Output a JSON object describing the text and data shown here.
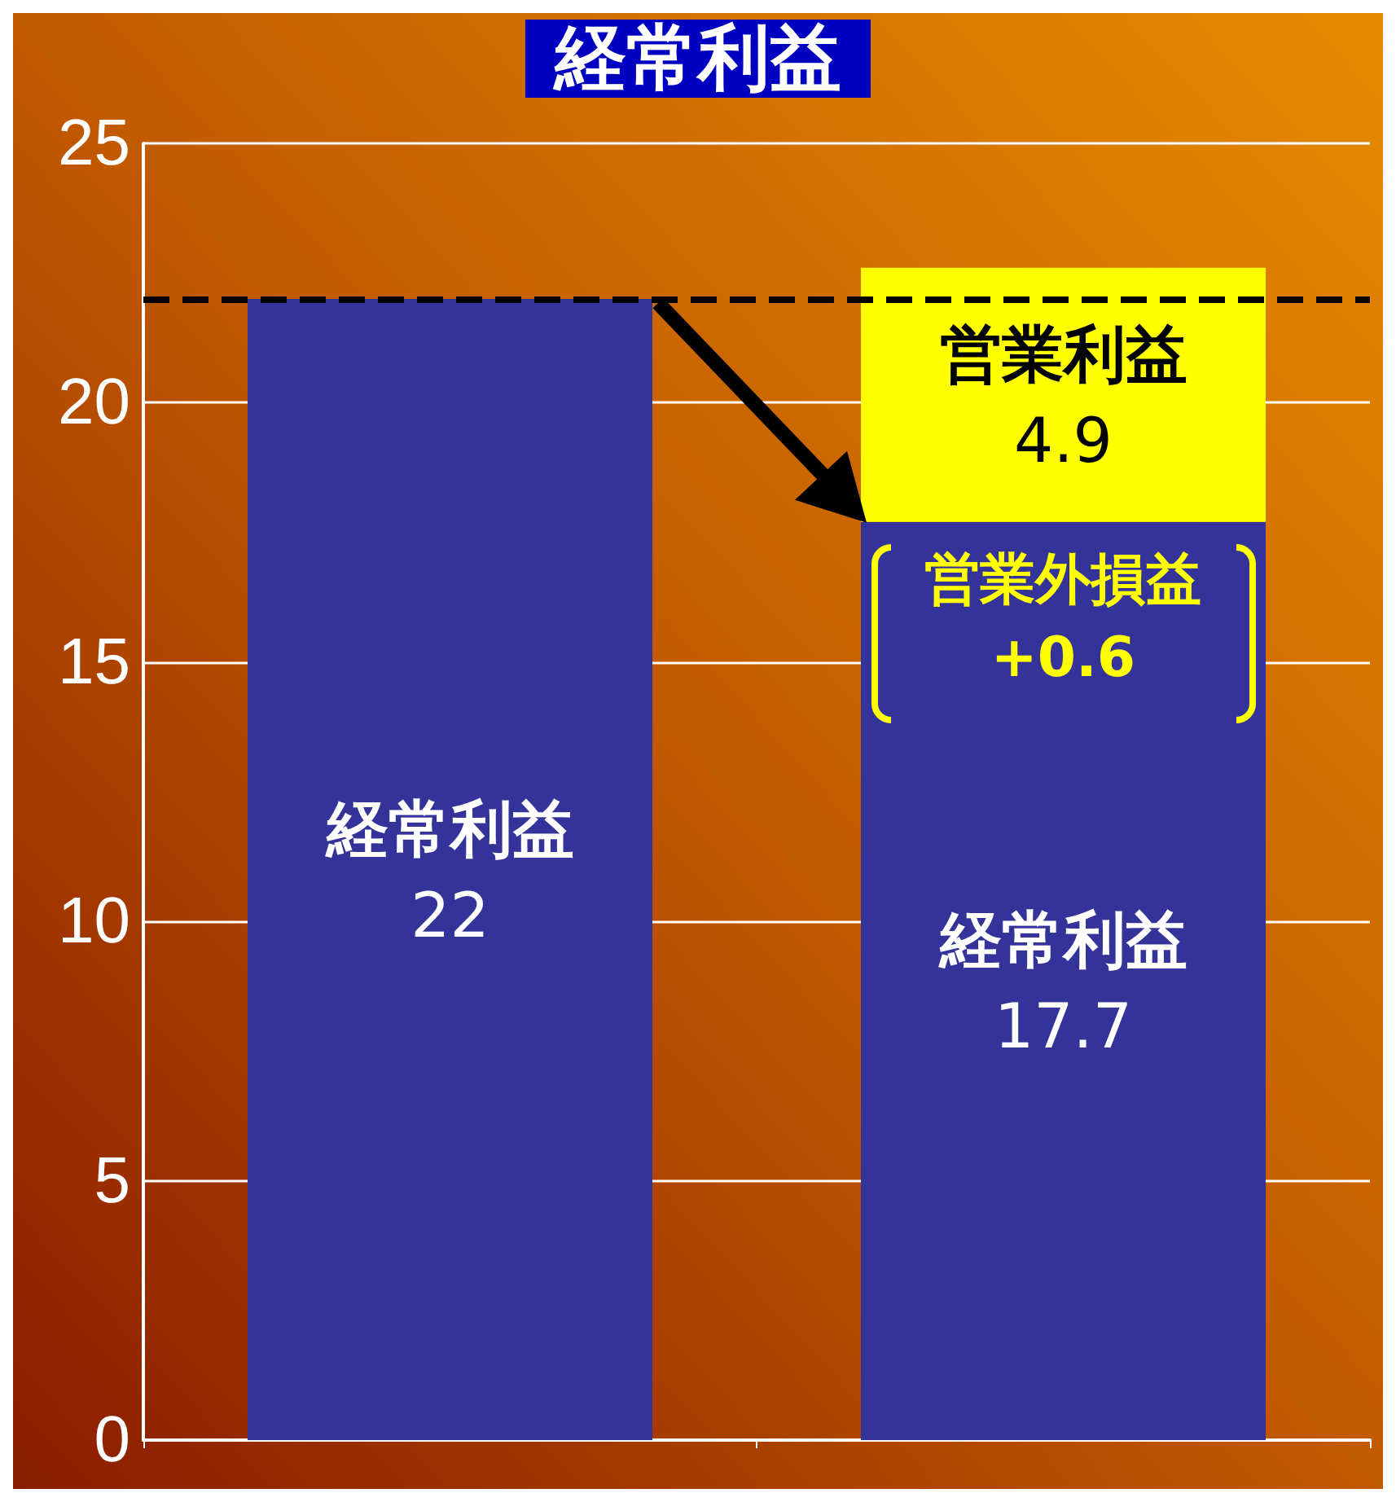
{
  "chart_data": {
    "type": "bar",
    "title": "経常利益",
    "categories": [
      null,
      null
    ],
    "stacked": true,
    "data_labels": true,
    "ylim": [
      0,
      25
    ],
    "yticks": [
      0,
      5,
      10,
      15,
      20,
      25
    ],
    "grid": "y",
    "legend": false,
    "series": [
      {
        "name": "経常利益",
        "color": "#333399",
        "values": [
          22,
          17.7
        ]
      },
      {
        "name": "営業利益",
        "color": "#ffff00",
        "values": [
          null,
          4.9
        ]
      }
    ],
    "ref_lines": [
      {
        "axis": "y",
        "value": 22,
        "color": "#000000",
        "line_style": "dashed"
      }
    ],
    "annotations": [
      "営業外損益\n+0.6"
    ]
  }
}
